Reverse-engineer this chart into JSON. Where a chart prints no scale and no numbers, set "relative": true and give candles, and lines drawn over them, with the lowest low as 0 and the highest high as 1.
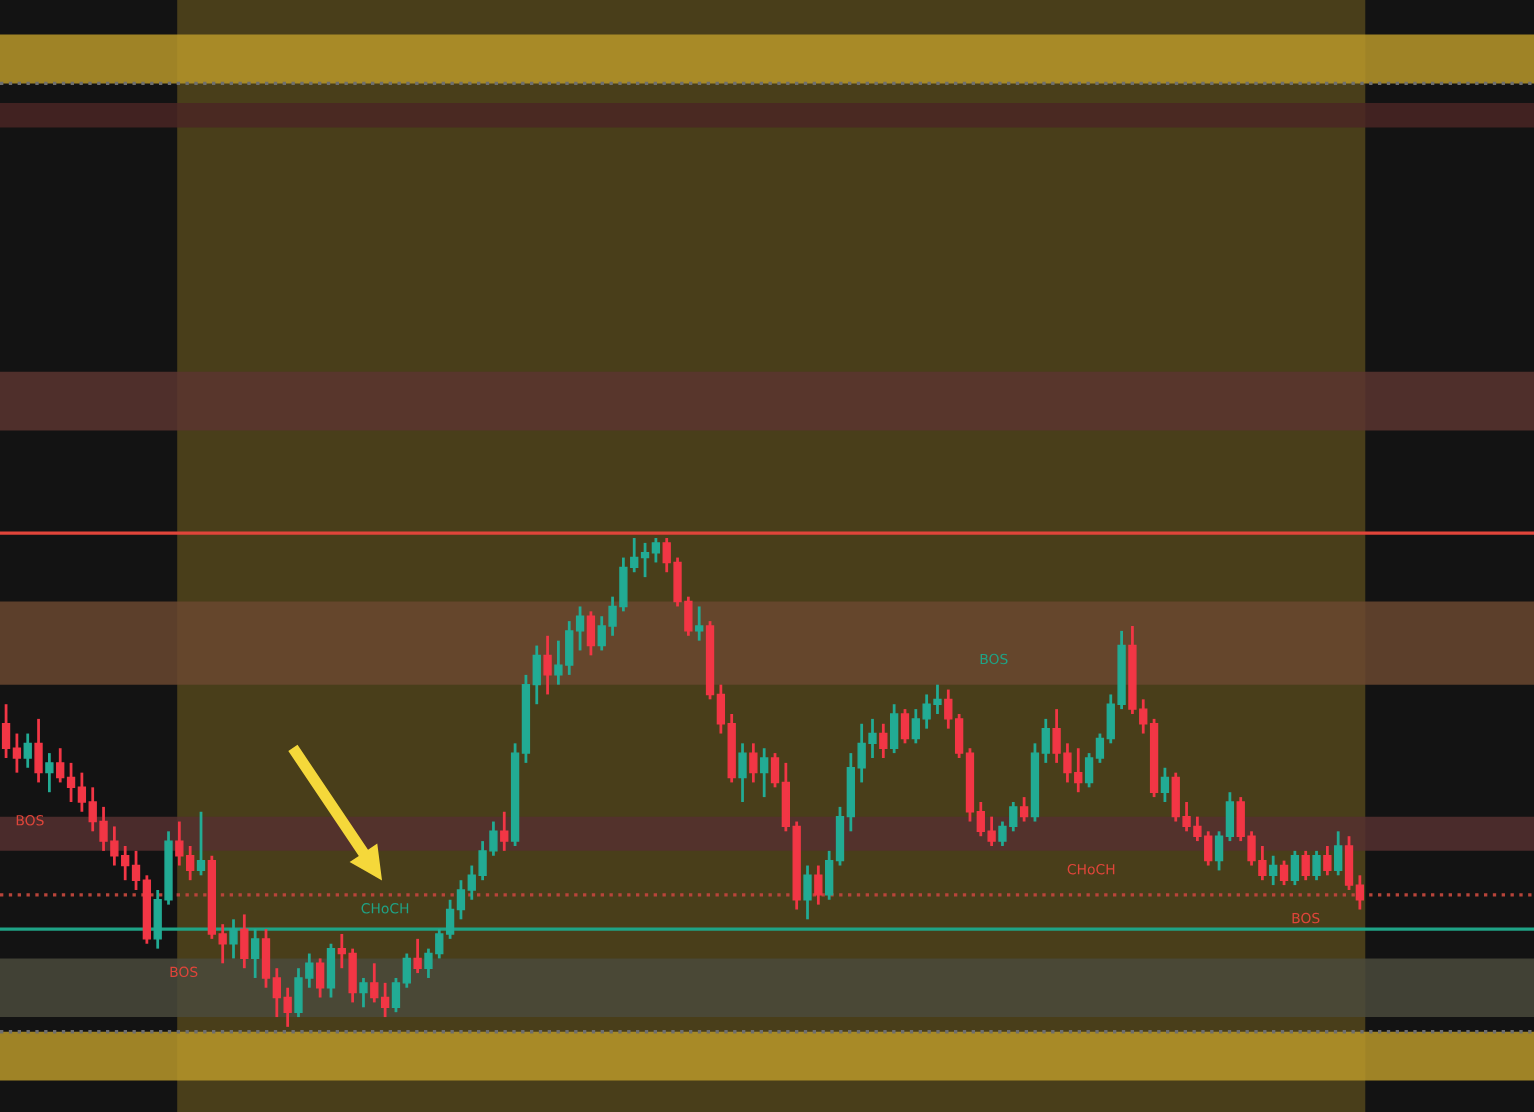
{
  "chart_data": {
    "type": "candlestick",
    "relative": true,
    "categories": [
      null,
      null,
      null,
      null,
      null,
      null,
      null,
      null,
      null,
      null,
      null,
      null,
      null,
      null,
      null,
      null,
      null,
      null,
      null,
      null,
      null,
      null,
      null,
      null,
      null,
      null,
      null,
      null,
      null,
      null,
      null,
      null,
      null,
      null,
      null,
      null,
      null,
      null,
      null,
      null,
      null,
      null,
      null,
      null,
      null,
      null,
      null,
      null,
      null,
      null,
      null,
      null,
      null,
      null,
      null,
      null,
      null,
      null,
      null,
      null,
      null,
      null,
      null,
      null,
      null,
      null,
      null,
      null,
      null,
      null,
      null,
      null,
      null,
      null,
      null,
      null,
      null,
      null,
      null,
      null,
      null,
      null,
      null,
      null,
      null,
      null,
      null,
      null,
      null,
      null,
      null,
      null,
      null,
      null,
      null,
      null,
      null,
      null,
      null,
      null,
      null,
      null,
      null,
      null,
      null,
      null,
      null,
      null,
      null,
      null,
      null,
      null,
      null,
      null,
      null,
      null,
      null,
      null,
      null,
      null,
      null,
      null,
      null,
      null,
      null,
      null
    ],
    "ohlc": [
      [
        0.62,
        0.66,
        0.55,
        0.57
      ],
      [
        0.57,
        0.6,
        0.52,
        0.55
      ],
      [
        0.55,
        0.6,
        0.53,
        0.58
      ],
      [
        0.58,
        0.63,
        0.5,
        0.52
      ],
      [
        0.52,
        0.56,
        0.48,
        0.54
      ],
      [
        0.54,
        0.57,
        0.5,
        0.51
      ],
      [
        0.51,
        0.54,
        0.46,
        0.49
      ],
      [
        0.49,
        0.52,
        0.44,
        0.46
      ],
      [
        0.46,
        0.49,
        0.4,
        0.42
      ],
      [
        0.42,
        0.45,
        0.36,
        0.38
      ],
      [
        0.38,
        0.41,
        0.33,
        0.35
      ],
      [
        0.35,
        0.37,
        0.3,
        0.33
      ],
      [
        0.33,
        0.36,
        0.28,
        0.3
      ],
      [
        0.3,
        0.31,
        0.17,
        0.18
      ],
      [
        0.18,
        0.28,
        0.16,
        0.26
      ],
      [
        0.26,
        0.4,
        0.25,
        0.38
      ],
      [
        0.38,
        0.42,
        0.33,
        0.35
      ],
      [
        0.35,
        0.37,
        0.3,
        0.32
      ],
      [
        0.32,
        0.44,
        0.31,
        0.34
      ],
      [
        0.34,
        0.35,
        0.18,
        0.19
      ],
      [
        0.19,
        0.21,
        0.13,
        0.17
      ],
      [
        0.17,
        0.22,
        0.14,
        0.2
      ],
      [
        0.2,
        0.23,
        0.12,
        0.14
      ],
      [
        0.14,
        0.2,
        0.1,
        0.18
      ],
      [
        0.18,
        0.2,
        0.08,
        0.1
      ],
      [
        0.1,
        0.12,
        0.02,
        0.06
      ],
      [
        0.06,
        0.08,
        0.0,
        0.03
      ],
      [
        0.03,
        0.12,
        0.02,
        0.1
      ],
      [
        0.1,
        0.15,
        0.08,
        0.13
      ],
      [
        0.13,
        0.14,
        0.06,
        0.08
      ],
      [
        0.08,
        0.17,
        0.06,
        0.16
      ],
      [
        0.16,
        0.19,
        0.12,
        0.15
      ],
      [
        0.15,
        0.16,
        0.05,
        0.07
      ],
      [
        0.07,
        0.1,
        0.04,
        0.09
      ],
      [
        0.09,
        0.13,
        0.05,
        0.06
      ],
      [
        0.06,
        0.09,
        0.02,
        0.04
      ],
      [
        0.04,
        0.1,
        0.03,
        0.09
      ],
      [
        0.09,
        0.15,
        0.08,
        0.14
      ],
      [
        0.14,
        0.18,
        0.11,
        0.12
      ],
      [
        0.12,
        0.16,
        0.1,
        0.15
      ],
      [
        0.15,
        0.2,
        0.14,
        0.19
      ],
      [
        0.19,
        0.26,
        0.18,
        0.24
      ],
      [
        0.24,
        0.3,
        0.22,
        0.28
      ],
      [
        0.28,
        0.33,
        0.26,
        0.31
      ],
      [
        0.31,
        0.38,
        0.3,
        0.36
      ],
      [
        0.36,
        0.42,
        0.35,
        0.4
      ],
      [
        0.4,
        0.44,
        0.36,
        0.38
      ],
      [
        0.38,
        0.58,
        0.37,
        0.56
      ],
      [
        0.56,
        0.72,
        0.54,
        0.7
      ],
      [
        0.7,
        0.78,
        0.66,
        0.76
      ],
      [
        0.76,
        0.8,
        0.68,
        0.72
      ],
      [
        0.72,
        0.79,
        0.7,
        0.74
      ],
      [
        0.74,
        0.83,
        0.72,
        0.81
      ],
      [
        0.81,
        0.86,
        0.77,
        0.84
      ],
      [
        0.84,
        0.85,
        0.76,
        0.78
      ],
      [
        0.78,
        0.84,
        0.77,
        0.82
      ],
      [
        0.82,
        0.88,
        0.8,
        0.86
      ],
      [
        0.86,
        0.96,
        0.85,
        0.94
      ],
      [
        0.94,
        1.0,
        0.93,
        0.96
      ],
      [
        0.96,
        0.99,
        0.92,
        0.97
      ],
      [
        0.97,
        1.0,
        0.95,
        0.99
      ],
      [
        0.99,
        1.0,
        0.93,
        0.95
      ],
      [
        0.95,
        0.96,
        0.86,
        0.87
      ],
      [
        0.87,
        0.88,
        0.8,
        0.81
      ],
      [
        0.81,
        0.86,
        0.79,
        0.82
      ],
      [
        0.82,
        0.83,
        0.67,
        0.68
      ],
      [
        0.68,
        0.7,
        0.6,
        0.62
      ],
      [
        0.62,
        0.64,
        0.5,
        0.51
      ],
      [
        0.51,
        0.58,
        0.46,
        0.56
      ],
      [
        0.56,
        0.58,
        0.5,
        0.52
      ],
      [
        0.52,
        0.57,
        0.47,
        0.55
      ],
      [
        0.55,
        0.56,
        0.49,
        0.5
      ],
      [
        0.5,
        0.54,
        0.4,
        0.41
      ],
      [
        0.41,
        0.42,
        0.24,
        0.26
      ],
      [
        0.26,
        0.33,
        0.22,
        0.31
      ],
      [
        0.31,
        0.33,
        0.25,
        0.27
      ],
      [
        0.27,
        0.36,
        0.26,
        0.34
      ],
      [
        0.34,
        0.45,
        0.33,
        0.43
      ],
      [
        0.43,
        0.56,
        0.4,
        0.53
      ],
      [
        0.53,
        0.62,
        0.5,
        0.58
      ],
      [
        0.58,
        0.63,
        0.55,
        0.6
      ],
      [
        0.6,
        0.62,
        0.55,
        0.57
      ],
      [
        0.57,
        0.66,
        0.56,
        0.64
      ],
      [
        0.64,
        0.65,
        0.58,
        0.59
      ],
      [
        0.59,
        0.65,
        0.58,
        0.63
      ],
      [
        0.63,
        0.68,
        0.61,
        0.66
      ],
      [
        0.66,
        0.7,
        0.64,
        0.67
      ],
      [
        0.67,
        0.69,
        0.61,
        0.63
      ],
      [
        0.63,
        0.64,
        0.55,
        0.56
      ],
      [
        0.56,
        0.57,
        0.42,
        0.44
      ],
      [
        0.44,
        0.46,
        0.39,
        0.4
      ],
      [
        0.4,
        0.43,
        0.37,
        0.38
      ],
      [
        0.38,
        0.42,
        0.37,
        0.41
      ],
      [
        0.41,
        0.46,
        0.4,
        0.45
      ],
      [
        0.45,
        0.47,
        0.42,
        0.43
      ],
      [
        0.43,
        0.58,
        0.42,
        0.56
      ],
      [
        0.56,
        0.63,
        0.54,
        0.61
      ],
      [
        0.61,
        0.65,
        0.54,
        0.56
      ],
      [
        0.56,
        0.58,
        0.5,
        0.52
      ],
      [
        0.52,
        0.57,
        0.48,
        0.5
      ],
      [
        0.5,
        0.56,
        0.49,
        0.55
      ],
      [
        0.55,
        0.6,
        0.54,
        0.59
      ],
      [
        0.59,
        0.68,
        0.58,
        0.66
      ],
      [
        0.66,
        0.81,
        0.65,
        0.78
      ],
      [
        0.78,
        0.82,
        0.64,
        0.65
      ],
      [
        0.65,
        0.67,
        0.6,
        0.62
      ],
      [
        0.62,
        0.63,
        0.47,
        0.48
      ],
      [
        0.48,
        0.53,
        0.46,
        0.51
      ],
      [
        0.51,
        0.52,
        0.42,
        0.43
      ],
      [
        0.43,
        0.46,
        0.4,
        0.41
      ],
      [
        0.41,
        0.43,
        0.38,
        0.39
      ],
      [
        0.39,
        0.4,
        0.33,
        0.34
      ],
      [
        0.34,
        0.4,
        0.32,
        0.39
      ],
      [
        0.39,
        0.48,
        0.38,
        0.46
      ],
      [
        0.46,
        0.47,
        0.38,
        0.39
      ],
      [
        0.39,
        0.4,
        0.33,
        0.34
      ],
      [
        0.34,
        0.37,
        0.3,
        0.31
      ],
      [
        0.31,
        0.35,
        0.29,
        0.33
      ],
      [
        0.33,
        0.34,
        0.29,
        0.3
      ],
      [
        0.3,
        0.36,
        0.29,
        0.35
      ],
      [
        0.35,
        0.36,
        0.3,
        0.31
      ],
      [
        0.31,
        0.36,
        0.3,
        0.35
      ],
      [
        0.35,
        0.37,
        0.31,
        0.32
      ],
      [
        0.32,
        0.4,
        0.31,
        0.37
      ],
      [
        0.37,
        0.39,
        0.28,
        0.29
      ],
      [
        0.29,
        0.31,
        0.24,
        0.26
      ]
    ],
    "colors": [
      "#f23645",
      "#f23645",
      "#22ab94",
      "#f23645",
      "#22ab94",
      "#f23645",
      "#f23645",
      "#f23645",
      "#f23645",
      "#f23645",
      "#f23645",
      "#f23645",
      "#f23645",
      "#f23645",
      "#22ab94",
      "#22ab94",
      "#f23645",
      "#f23645",
      "#22ab94",
      "#f23645",
      "#f23645",
      "#22ab94",
      "#f23645",
      "#22ab94",
      "#f23645",
      "#f23645",
      "#f23645",
      "#22ab94",
      "#22ab94",
      "#f23645",
      "#22ab94",
      "#f23645",
      "#f23645",
      "#22ab94",
      "#f23645",
      "#f23645",
      "#22ab94",
      "#22ab94",
      "#f23645",
      "#22ab94",
      "#22ab94",
      "#22ab94",
      "#22ab94",
      "#22ab94",
      "#22ab94",
      "#22ab94",
      "#f23645",
      "#22ab94",
      "#22ab94",
      "#22ab94",
      "#f23645",
      "#22ab94",
      "#22ab94",
      "#22ab94",
      "#f23645",
      "#22ab94",
      "#22ab94",
      "#22ab94",
      "#22ab94",
      "#22ab94",
      "#22ab94",
      "#f23645",
      "#f23645",
      "#f23645",
      "#22ab94",
      "#f23645",
      "#f23645",
      "#f23645",
      "#22ab94",
      "#f23645",
      "#22ab94",
      "#f23645",
      "#f23645",
      "#f23645",
      "#22ab94",
      "#f23645",
      "#22ab94",
      "#22ab94",
      "#22ab94",
      "#22ab94",
      "#22ab94",
      "#f23645",
      "#22ab94",
      "#f23645",
      "#22ab94",
      "#22ab94",
      "#22ab94",
      "#f23645",
      "#f23645",
      "#f23645",
      "#f23645",
      "#f23645",
      "#22ab94",
      "#22ab94",
      "#f23645",
      "#22ab94",
      "#22ab94",
      "#f23645",
      "#f23645",
      "#f23645",
      "#22ab94",
      "#22ab94",
      "#22ab94",
      "#22ab94",
      "#f23645",
      "#f23645",
      "#f23645",
      "#22ab94",
      "#f23645",
      "#f23645",
      "#f23645",
      "#f23645",
      "#22ab94",
      "#22ab94",
      "#f23645",
      "#f23645",
      "#f23645",
      "#22ab94",
      "#f23645",
      "#22ab94",
      "#f23645",
      "#22ab94",
      "#f23645",
      "#22ab94",
      "#f23645",
      "#f23645"
    ],
    "ref_lines": [
      {
        "axis": "y",
        "value": 1.01,
        "color": "#e0453a",
        "line_style": "solid"
      },
      {
        "axis": "y",
        "value": 0.2,
        "color": "#1fa386",
        "line_style": "solid"
      },
      {
        "axis": "y",
        "value": 0.27,
        "color": "#b8443a",
        "line_style": "dotted"
      },
      {
        "axis": "y",
        "value": 1.93,
        "color": "#6e6e6e",
        "line_style": "dotted"
      },
      {
        "axis": "y",
        "value": -0.01,
        "color": "#6e6e6e",
        "line_style": "dotted"
      }
    ],
    "bands": [
      {
        "axis": "y",
        "from": 1.93,
        "to": 2.03,
        "color": "#b8982a"
      },
      {
        "axis": "y",
        "from": -0.11,
        "to": -0.01,
        "color": "#b8982a"
      },
      {
        "axis": "y",
        "from": 1.84,
        "to": 1.89,
        "color": "#4a2624"
      },
      {
        "axis": "y",
        "from": 1.22,
        "to": 1.34,
        "color": "#5a3530"
      },
      {
        "axis": "y",
        "from": 0.7,
        "to": 0.87,
        "color": "#6a4830"
      },
      {
        "axis": "y",
        "from": 0.36,
        "to": 0.43,
        "color": "#553030"
      },
      {
        "axis": "y",
        "from": 0.02,
        "to": 0.14,
        "color": "#4a4a3c"
      }
    ],
    "annotations": [
      "BOS",
      "BOS",
      "CHoCH",
      "BOS",
      "CHoCH",
      "BOS"
    ]
  }
}
